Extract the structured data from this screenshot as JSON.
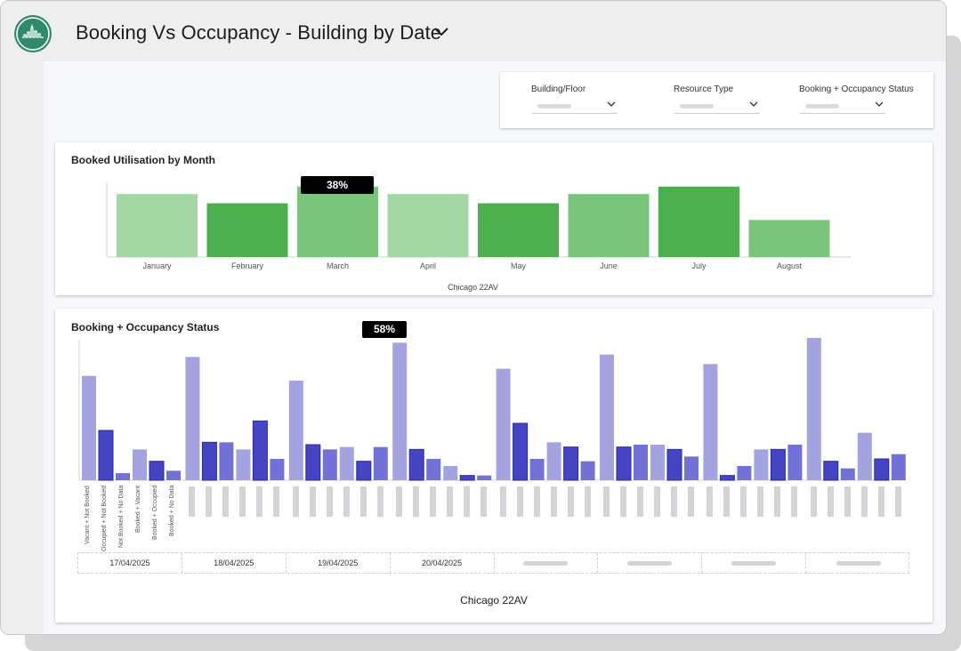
{
  "header": {
    "title": "Booking Vs Occupancy - Building by Date",
    "logo_icon": "city-skyline-logo",
    "dropdown_icon": "chevron-down-icon"
  },
  "filters": [
    {
      "label": "Building/Floor"
    },
    {
      "label": "Resource Type"
    },
    {
      "label": "Booking + Occupancy Status"
    }
  ],
  "colors": {
    "green_light": "#a5d7a4",
    "green_mid": "#7bc47d",
    "green_dark": "#4caf50",
    "purple_light": "#a3a3e0",
    "purple_mid": "#7272d6",
    "purple_dark": "#4545c4",
    "brand": "#2e8a6a"
  },
  "utilisation": {
    "title": "Booked Utilisation by Month",
    "tooltip": "38%",
    "subtitle": "Chicago 22AV",
    "chart_data": {
      "type": "bar",
      "categories": [
        "January",
        "February",
        "March",
        "April",
        "May",
        "June",
        "July",
        "August"
      ],
      "values": [
        34,
        29,
        38,
        34,
        29,
        34,
        38,
        20
      ],
      "shade": [
        "light",
        "dark",
        "mid",
        "light",
        "dark",
        "mid",
        "dark",
        "mid"
      ],
      "ylim": [
        0,
        48
      ]
    }
  },
  "status": {
    "title": "Booking + Occupancy Status",
    "tooltip": "58%",
    "subtitle": "Chicago 22AV",
    "chart_data": {
      "type": "bar",
      "categories": [
        "Vacant + Not Booked",
        "Occupied + Not Booked",
        "Not Booked + No Data",
        "Booked + Vacant",
        "Booked + Occupied",
        "Booked + No Data"
      ],
      "series": [
        {
          "date": "17/04/2025",
          "values": [
            44,
            21,
            3,
            13,
            8,
            4
          ]
        },
        {
          "date": "18/04/2025",
          "values": [
            52,
            16,
            16,
            13,
            25,
            9
          ]
        },
        {
          "date": "19/04/2025",
          "values": [
            42,
            15,
            13,
            14,
            8,
            14
          ]
        },
        {
          "date": "20/04/2025",
          "values": [
            58,
            13,
            9,
            6,
            2,
            2
          ]
        },
        {
          "date": "",
          "values": [
            47,
            24,
            9,
            16,
            14,
            8
          ]
        },
        {
          "date": "",
          "values": [
            53,
            14,
            15,
            15,
            13,
            10
          ]
        },
        {
          "date": "",
          "values": [
            49,
            2,
            6,
            13,
            13,
            15
          ]
        },
        {
          "date": "",
          "values": [
            60,
            8,
            5,
            20,
            9,
            11
          ]
        }
      ],
      "shade": [
        "light",
        "dark",
        "mid",
        "light",
        "dark",
        "mid"
      ],
      "ylim": [
        0,
        60
      ]
    }
  }
}
